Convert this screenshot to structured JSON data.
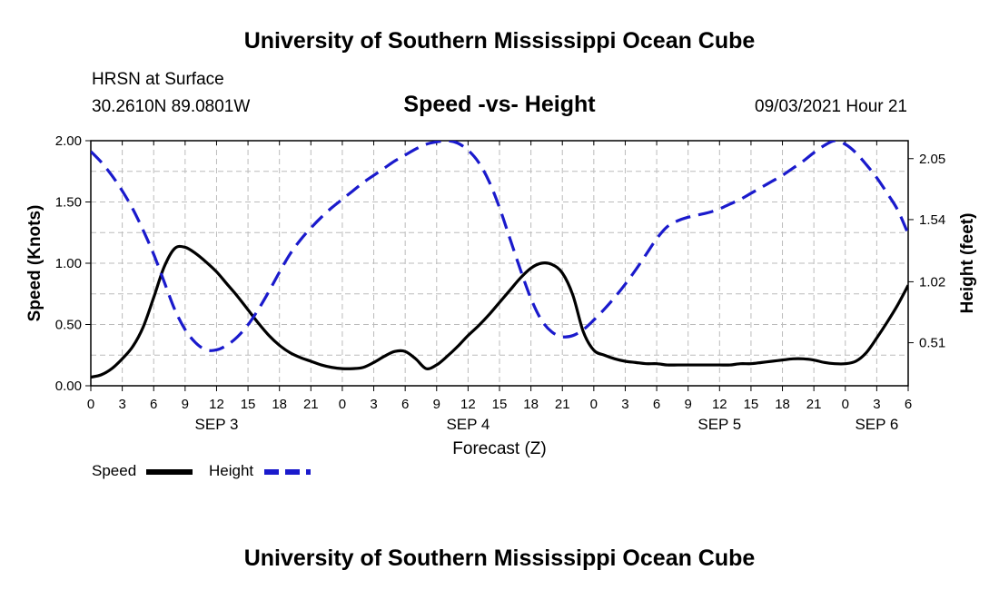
{
  "header": {
    "title": "University of Southern Mississippi Ocean Cube",
    "station": "HRSN at Surface",
    "coordinates": "30.2610N  89.0801W",
    "chart_title": "Speed -vs- Height",
    "timestamp": "09/03/2021 Hour 21"
  },
  "footer": {
    "title": "University of Southern Mississippi Ocean Cube"
  },
  "legend": {
    "speed_label": "Speed",
    "height_label": "Height"
  },
  "colors": {
    "speed": "#000000",
    "height": "#1a1acc",
    "grid": "#bbbbbb"
  },
  "chart_data": {
    "type": "line",
    "title": "Speed -vs- Height",
    "xlabel": "Forecast (Z)",
    "ylabel": "Speed (Knots)",
    "y2label": "Height (feet)",
    "xlim": [
      0,
      78
    ],
    "ylim": [
      0,
      2.0
    ],
    "y2lim": [
      0.15,
      2.2
    ],
    "grid": true,
    "x_tick_values": [
      0,
      3,
      6,
      9,
      12,
      15,
      18,
      21,
      24,
      27,
      30,
      33,
      36,
      39,
      42,
      45,
      48,
      51,
      54,
      57,
      60,
      63,
      66,
      69,
      72,
      75,
      78
    ],
    "x_tick_labels": [
      "0",
      "3",
      "6",
      "9",
      "12",
      "15",
      "18",
      "21",
      "0",
      "3",
      "6",
      "9",
      "12",
      "15",
      "18",
      "21",
      "0",
      "3",
      "6",
      "9",
      "12",
      "15",
      "18",
      "21",
      "0",
      "3",
      "6"
    ],
    "y_ticks": [
      {
        "value": 0,
        "label": "0.00"
      },
      {
        "value": 0.5,
        "label": "0.50"
      },
      {
        "value": 1.0,
        "label": "1.00"
      },
      {
        "value": 1.5,
        "label": "1.50"
      },
      {
        "value": 2.0,
        "label": "2.00"
      }
    ],
    "y2_ticks": [
      {
        "value": 0.51,
        "label": "0.51"
      },
      {
        "value": 1.02,
        "label": "1.02"
      },
      {
        "value": 1.54,
        "label": "1.54"
      },
      {
        "value": 2.05,
        "label": "2.05"
      }
    ],
    "date_labels": [
      {
        "x": 12,
        "label": "SEP 3"
      },
      {
        "x": 36,
        "label": "SEP 4"
      },
      {
        "x": 60,
        "label": "SEP 5"
      },
      {
        "x": 75,
        "label": "SEP 6"
      }
    ],
    "series": [
      {
        "name": "Speed",
        "axis": "left",
        "style": "solid",
        "x": [
          0,
          1,
          2,
          3,
          4,
          5,
          6,
          7,
          8,
          9,
          10,
          11,
          12,
          13,
          14,
          15,
          16,
          17,
          18,
          19,
          20,
          21,
          22,
          23,
          24,
          25,
          26,
          27,
          28,
          29,
          30,
          31,
          32,
          33,
          34,
          35,
          36,
          37,
          38,
          39,
          40,
          41,
          42,
          43,
          44,
          45,
          46,
          47,
          48,
          49,
          50,
          51,
          52,
          53,
          54,
          55,
          56,
          57,
          58,
          59,
          60,
          61,
          62,
          63,
          64,
          65,
          66,
          67,
          68,
          69,
          70,
          71,
          72,
          73,
          74,
          75,
          76,
          77,
          78
        ],
        "values": [
          0.07,
          0.09,
          0.14,
          0.22,
          0.32,
          0.48,
          0.72,
          0.97,
          1.12,
          1.13,
          1.08,
          1.01,
          0.93,
          0.83,
          0.73,
          0.62,
          0.51,
          0.41,
          0.33,
          0.27,
          0.23,
          0.2,
          0.17,
          0.15,
          0.14,
          0.14,
          0.15,
          0.19,
          0.24,
          0.28,
          0.28,
          0.22,
          0.14,
          0.17,
          0.24,
          0.32,
          0.41,
          0.49,
          0.58,
          0.68,
          0.78,
          0.88,
          0.96,
          1.0,
          0.99,
          0.92,
          0.74,
          0.44,
          0.29,
          0.25,
          0.22,
          0.2,
          0.19,
          0.18,
          0.18,
          0.17,
          0.17,
          0.17,
          0.17,
          0.17,
          0.17,
          0.17,
          0.18,
          0.18,
          0.19,
          0.2,
          0.21,
          0.22,
          0.22,
          0.21,
          0.19,
          0.18,
          0.18,
          0.2,
          0.27,
          0.39,
          0.52,
          0.66,
          0.82
        ]
      },
      {
        "name": "Height",
        "axis": "right",
        "style": "dashed",
        "x": [
          0,
          1,
          2,
          3,
          4,
          5,
          6,
          7,
          8,
          9,
          10,
          11,
          12,
          13,
          14,
          15,
          16,
          17,
          18,
          19,
          20,
          21,
          22,
          23,
          24,
          25,
          26,
          27,
          28,
          29,
          30,
          31,
          32,
          33,
          34,
          35,
          36,
          37,
          38,
          39,
          40,
          41,
          42,
          43,
          44,
          45,
          46,
          47,
          48,
          49,
          50,
          51,
          52,
          53,
          54,
          55,
          56,
          57,
          58,
          59,
          60,
          61,
          62,
          63,
          64,
          65,
          66,
          67,
          68,
          69,
          70,
          71,
          72,
          73,
          74,
          75,
          76,
          77,
          78
        ],
        "values": [
          2.11,
          2.02,
          1.91,
          1.78,
          1.63,
          1.45,
          1.25,
          1.02,
          0.79,
          0.62,
          0.51,
          0.45,
          0.45,
          0.49,
          0.56,
          0.66,
          0.79,
          0.94,
          1.1,
          1.25,
          1.37,
          1.47,
          1.56,
          1.64,
          1.71,
          1.78,
          1.85,
          1.91,
          1.97,
          2.03,
          2.08,
          2.13,
          2.17,
          2.19,
          2.2,
          2.18,
          2.12,
          2.02,
          1.86,
          1.64,
          1.38,
          1.12,
          0.88,
          0.7,
          0.6,
          0.56,
          0.57,
          0.62,
          0.7,
          0.79,
          0.89,
          1.0,
          1.12,
          1.25,
          1.38,
          1.48,
          1.53,
          1.56,
          1.58,
          1.6,
          1.63,
          1.67,
          1.71,
          1.76,
          1.81,
          1.86,
          1.91,
          1.97,
          2.03,
          2.1,
          2.16,
          2.2,
          2.17,
          2.1,
          2.0,
          1.89,
          1.76,
          1.62,
          1.42
        ]
      }
    ]
  }
}
